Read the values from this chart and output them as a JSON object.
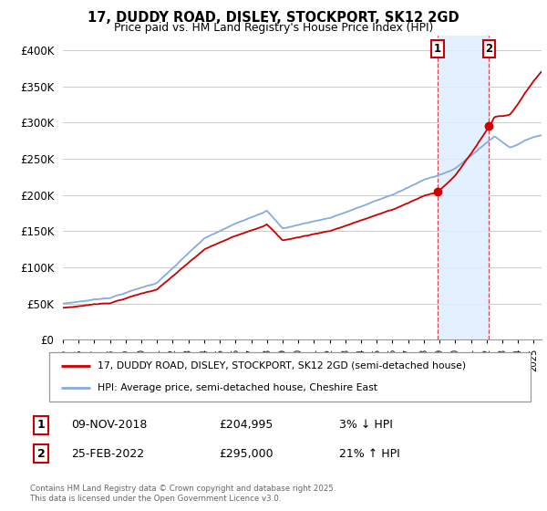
{
  "title": "17, DUDDY ROAD, DISLEY, STOCKPORT, SK12 2GD",
  "subtitle": "Price paid vs. HM Land Registry's House Price Index (HPI)",
  "ylim": [
    0,
    420000
  ],
  "yticks": [
    0,
    50000,
    100000,
    150000,
    200000,
    250000,
    300000,
    350000,
    400000
  ],
  "ytick_labels": [
    "£0",
    "£50K",
    "£100K",
    "£150K",
    "£200K",
    "£250K",
    "£300K",
    "£350K",
    "£400K"
  ],
  "sale_color": "#cc0000",
  "hpi_color": "#88aadd",
  "bg_color": "#ffffff",
  "shade_color": "#ddeeff",
  "grid_color": "#cccccc",
  "marker1_date": "09-NOV-2018",
  "marker1_price": 204995,
  "marker2_date": "25-FEB-2022",
  "marker2_price": 295000,
  "marker1_hpi_pct": "3% ↓ HPI",
  "marker2_hpi_pct": "21% ↑ HPI",
  "legend_sale": "17, DUDDY ROAD, DISLEY, STOCKPORT, SK12 2GD (semi-detached house)",
  "legend_hpi": "HPI: Average price, semi-detached house, Cheshire East",
  "footnote_line1": "Contains HM Land Registry data © Crown copyright and database right 2025.",
  "footnote_line2": "This data is licensed under the Open Government Licence v3.0.",
  "marker1_year": 2018.85,
  "marker2_year": 2022.12,
  "start_year": 1995,
  "end_year": 2025.5,
  "num_points": 365
}
